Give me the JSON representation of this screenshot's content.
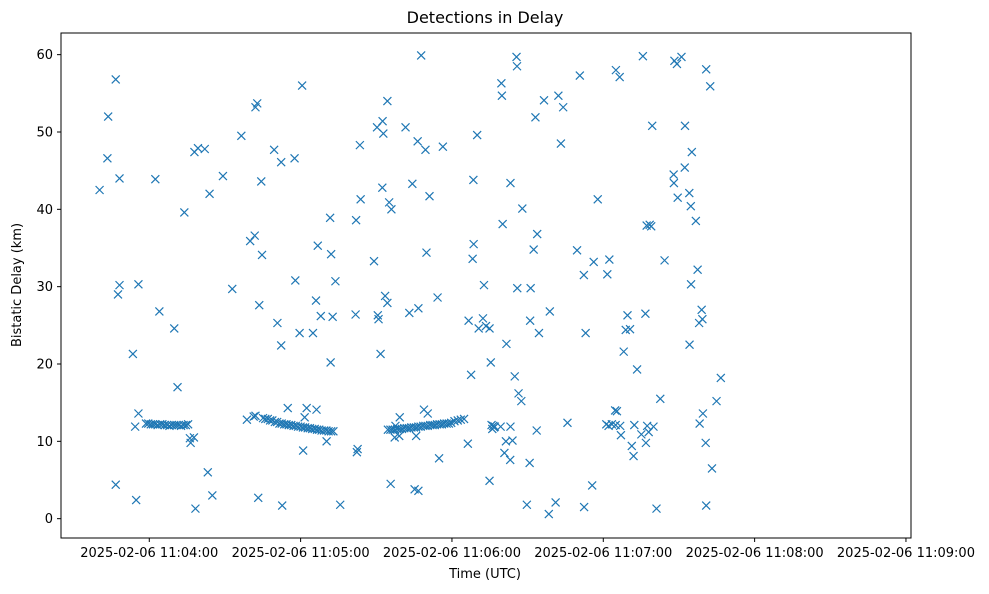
{
  "chart_data": {
    "type": "scatter",
    "title": "Detections in Delay",
    "xlabel": "Time (UTC)",
    "ylabel": "Bistatic Delay (km)",
    "marker": "x",
    "color": "#1f77b4",
    "x_unit": "seconds after 2025-02-06 11:03:00",
    "xlim": [
      25,
      362
    ],
    "ylim": [
      -2.5,
      62.8
    ],
    "xticks": [
      60,
      120,
      180,
      240,
      300,
      360
    ],
    "xtick_labels": [
      "2025-02-06 11:04:00",
      "2025-02-06 11:05:00",
      "2025-02-06 11:06:00",
      "2025-02-06 11:07:00",
      "2025-02-06 11:08:00",
      "2025-02-06 11:09:00"
    ],
    "yticks": [
      0,
      10,
      20,
      30,
      40,
      50,
      60
    ],
    "ytick_labels": [
      "0",
      "10",
      "20",
      "30",
      "40",
      "50",
      "60"
    ],
    "points": [
      [
        40.3,
        42.5
      ],
      [
        43.4,
        46.6
      ],
      [
        43.7,
        52.0
      ],
      [
        46.7,
        56.8
      ],
      [
        46.7,
        4.4
      ],
      [
        47.6,
        29.0
      ],
      [
        48.2,
        30.2
      ],
      [
        48.2,
        44.0
      ],
      [
        53.5,
        21.3
      ],
      [
        54.4,
        11.9
      ],
      [
        54.8,
        2.4
      ],
      [
        55.7,
        13.6
      ],
      [
        55.7,
        30.3
      ],
      [
        58.7,
        12.3
      ],
      [
        59.6,
        12.3
      ],
      [
        60.6,
        12.2
      ],
      [
        61.5,
        12.2
      ],
      [
        62.4,
        12.2
      ],
      [
        63.3,
        12.1
      ],
      [
        64.3,
        12.2
      ],
      [
        65.2,
        12.2
      ],
      [
        66.1,
        12.1
      ],
      [
        67.1,
        12.1
      ],
      [
        68.0,
        12.0
      ],
      [
        68.9,
        12.1
      ],
      [
        69.9,
        12.1
      ],
      [
        70.8,
        12.1
      ],
      [
        71.7,
        12.1
      ],
      [
        72.6,
        12.0
      ],
      [
        73.6,
        12.1
      ],
      [
        74.5,
        12.1
      ],
      [
        75.4,
        12.2
      ],
      [
        62.4,
        43.9
      ],
      [
        64.0,
        26.8
      ],
      [
        69.9,
        24.6
      ],
      [
        71.2,
        17.0
      ],
      [
        73.9,
        39.6
      ],
      [
        76.1,
        10.4
      ],
      [
        76.4,
        9.8
      ],
      [
        77.7,
        10.5
      ],
      [
        78.3,
        1.3
      ],
      [
        77.9,
        47.4
      ],
      [
        79.3,
        47.9
      ],
      [
        82.0,
        47.8
      ],
      [
        83.2,
        6.0
      ],
      [
        83.9,
        42.0
      ],
      [
        85.0,
        3.0
      ],
      [
        89.2,
        44.3
      ],
      [
        92.9,
        29.7
      ],
      [
        96.5,
        49.5
      ],
      [
        98.7,
        12.8
      ],
      [
        100.0,
        35.9
      ],
      [
        101.4,
        13.2
      ],
      [
        101.8,
        36.6
      ],
      [
        102.1,
        13.3
      ],
      [
        102.1,
        53.2
      ],
      [
        102.8,
        53.7
      ],
      [
        103.2,
        2.7
      ],
      [
        103.6,
        27.6
      ],
      [
        104.4,
        43.6
      ],
      [
        104.7,
        34.1
      ],
      [
        105.1,
        13.0
      ],
      [
        106.0,
        12.9
      ],
      [
        107.0,
        12.9
      ],
      [
        107.9,
        12.7
      ],
      [
        108.8,
        12.7
      ],
      [
        109.8,
        12.5
      ],
      [
        110.7,
        12.5
      ],
      [
        111.6,
        12.3
      ],
      [
        112.5,
        12.3
      ],
      [
        113.5,
        12.2
      ],
      [
        114.4,
        12.2
      ],
      [
        115.3,
        12.1
      ],
      [
        116.3,
        12.1
      ],
      [
        117.2,
        12.0
      ],
      [
        118.1,
        12.0
      ],
      [
        119.0,
        11.9
      ],
      [
        120.0,
        11.9
      ],
      [
        120.9,
        11.8
      ],
      [
        121.8,
        11.8
      ],
      [
        122.8,
        11.7
      ],
      [
        123.7,
        11.7
      ],
      [
        124.6,
        11.6
      ],
      [
        125.6,
        11.6
      ],
      [
        126.5,
        11.5
      ],
      [
        127.4,
        11.5
      ],
      [
        128.3,
        11.4
      ],
      [
        129.3,
        11.4
      ],
      [
        130.2,
        11.4
      ],
      [
        131.1,
        11.3
      ],
      [
        132.1,
        11.3
      ],
      [
        133.0,
        11.3
      ],
      [
        109.5,
        47.7
      ],
      [
        110.8,
        25.3
      ],
      [
        112.3,
        46.1
      ],
      [
        112.3,
        22.4
      ],
      [
        112.7,
        1.7
      ],
      [
        114.9,
        14.3
      ],
      [
        117.6,
        46.6
      ],
      [
        117.9,
        30.8
      ],
      [
        119.6,
        24.0
      ],
      [
        120.6,
        56.0
      ],
      [
        121.0,
        8.8
      ],
      [
        121.6,
        13.1
      ],
      [
        122.4,
        14.3
      ],
      [
        124.9,
        24.0
      ],
      [
        126.1,
        28.2
      ],
      [
        126.3,
        14.1
      ],
      [
        126.8,
        35.3
      ],
      [
        128.0,
        26.2
      ],
      [
        130.3,
        10.0
      ],
      [
        131.7,
        38.9
      ],
      [
        131.9,
        20.2
      ],
      [
        132.1,
        34.2
      ],
      [
        132.7,
        26.1
      ],
      [
        133.8,
        30.7
      ],
      [
        135.7,
        1.8
      ],
      [
        141.8,
        26.4
      ],
      [
        142.0,
        38.6
      ],
      [
        142.3,
        8.6
      ],
      [
        142.6,
        9.0
      ],
      [
        143.5,
        48.3
      ],
      [
        143.8,
        41.3
      ],
      [
        149.1,
        33.3
      ],
      [
        150.3,
        50.6
      ],
      [
        150.6,
        26.3
      ],
      [
        150.9,
        25.8
      ],
      [
        151.7,
        21.3
      ],
      [
        152.5,
        51.4
      ],
      [
        152.4,
        42.8
      ],
      [
        152.8,
        49.8
      ],
      [
        153.5,
        28.8
      ],
      [
        154.4,
        54.0
      ],
      [
        154.4,
        27.9
      ],
      [
        155.1,
        40.9
      ],
      [
        155.7,
        4.5
      ],
      [
        156.0,
        40.0
      ],
      [
        154.6,
        11.5
      ],
      [
        155.6,
        11.5
      ],
      [
        156.5,
        11.5
      ],
      [
        157.4,
        11.5
      ],
      [
        158.3,
        11.6
      ],
      [
        159.3,
        11.6
      ],
      [
        160.2,
        11.6
      ],
      [
        161.1,
        11.7
      ],
      [
        162.1,
        11.7
      ],
      [
        163.0,
        11.7
      ],
      [
        163.9,
        11.8
      ],
      [
        164.9,
        11.8
      ],
      [
        165.8,
        11.8
      ],
      [
        166.7,
        11.9
      ],
      [
        167.6,
        11.9
      ],
      [
        168.6,
        12.0
      ],
      [
        169.5,
        12.0
      ],
      [
        170.4,
        12.0
      ],
      [
        171.4,
        12.1
      ],
      [
        172.3,
        12.1
      ],
      [
        173.2,
        12.1
      ],
      [
        174.1,
        12.2
      ],
      [
        175.1,
        12.2
      ],
      [
        176.0,
        12.2
      ],
      [
        176.9,
        12.3
      ],
      [
        177.9,
        12.3
      ],
      [
        178.8,
        12.3
      ],
      [
        179.7,
        12.4
      ],
      [
        157.3,
        10.5
      ],
      [
        157.6,
        12.0
      ],
      [
        159.1,
        10.7
      ],
      [
        159.3,
        13.1
      ],
      [
        161.6,
        50.6
      ],
      [
        163.1,
        26.6
      ],
      [
        164.3,
        43.3
      ],
      [
        165.2,
        3.8
      ],
      [
        165.8,
        10.7
      ],
      [
        166.4,
        48.8
      ],
      [
        166.7,
        3.6
      ],
      [
        166.7,
        27.2
      ],
      [
        167.8,
        59.9
      ],
      [
        168.9,
        14.1
      ],
      [
        169.5,
        47.7
      ],
      [
        169.9,
        34.4
      ],
      [
        170.4,
        13.6
      ],
      [
        171.1,
        41.7
      ],
      [
        174.3,
        28.6
      ],
      [
        174.9,
        7.8
      ],
      [
        176.4,
        48.1
      ],
      [
        181.0,
        12.6
      ],
      [
        182.3,
        12.7
      ],
      [
        183.5,
        12.8
      ],
      [
        184.8,
        12.9
      ],
      [
        186.3,
        9.7
      ],
      [
        186.6,
        25.6
      ],
      [
        187.6,
        18.6
      ],
      [
        188.2,
        33.6
      ],
      [
        188.5,
        43.8
      ],
      [
        188.6,
        35.5
      ],
      [
        190.0,
        49.6
      ],
      [
        190.6,
        24.6
      ],
      [
        192.3,
        25.9
      ],
      [
        192.7,
        30.2
      ],
      [
        193.5,
        24.9
      ],
      [
        194.9,
        4.9
      ],
      [
        194.9,
        24.6
      ],
      [
        195.4,
        20.2
      ],
      [
        195.7,
        12.1
      ],
      [
        196.0,
        11.6
      ],
      [
        196.4,
        12.0
      ],
      [
        196.7,
        11.8
      ],
      [
        197.0,
        11.9
      ],
      [
        199.3,
        11.9
      ],
      [
        199.6,
        56.3
      ],
      [
        199.8,
        54.7
      ],
      [
        200.1,
        38.1
      ],
      [
        200.8,
        8.5
      ],
      [
        201.4,
        10.0
      ],
      [
        201.6,
        22.6
      ],
      [
        203.1,
        7.6
      ],
      [
        203.2,
        11.9
      ],
      [
        203.2,
        43.4
      ],
      [
        204.0,
        10.1
      ],
      [
        204.9,
        18.4
      ],
      [
        205.6,
        59.7
      ],
      [
        205.8,
        58.5
      ],
      [
        205.9,
        29.8
      ],
      [
        206.4,
        16.2
      ],
      [
        207.5,
        15.2
      ],
      [
        207.9,
        40.1
      ],
      [
        209.7,
        1.8
      ],
      [
        210.8,
        7.2
      ],
      [
        211.0,
        25.6
      ],
      [
        211.2,
        29.8
      ],
      [
        212.4,
        34.8
      ],
      [
        213.1,
        51.9
      ],
      [
        213.6,
        11.4
      ],
      [
        213.8,
        36.8
      ],
      [
        214.5,
        24.0
      ],
      [
        216.5,
        54.1
      ],
      [
        218.4,
        0.6
      ],
      [
        218.8,
        26.8
      ],
      [
        221.1,
        2.1
      ],
      [
        222.2,
        54.7
      ],
      [
        223.2,
        48.5
      ],
      [
        224.1,
        53.2
      ],
      [
        225.8,
        12.4
      ],
      [
        229.6,
        34.7
      ],
      [
        230.7,
        57.3
      ],
      [
        232.3,
        31.5
      ],
      [
        232.4,
        1.5
      ],
      [
        233.0,
        24.0
      ],
      [
        235.6,
        4.3
      ],
      [
        236.2,
        33.2
      ],
      [
        237.8,
        41.3
      ],
      [
        241.2,
        12.2
      ],
      [
        241.6,
        31.6
      ],
      [
        242.1,
        12.0
      ],
      [
        242.4,
        33.5
      ],
      [
        243.4,
        12.2
      ],
      [
        244.7,
        14.0
      ],
      [
        244.9,
        12.1
      ],
      [
        245.0,
        58.0
      ],
      [
        245.4,
        13.9
      ],
      [
        246.5,
        57.1
      ],
      [
        246.7,
        12.0
      ],
      [
        247.0,
        10.8
      ],
      [
        248.1,
        21.6
      ],
      [
        248.9,
        24.4
      ],
      [
        249.6,
        26.3
      ],
      [
        250.6,
        24.5
      ],
      [
        251.3,
        9.4
      ],
      [
        252.0,
        8.1
      ],
      [
        252.3,
        12.1
      ],
      [
        253.4,
        19.3
      ],
      [
        255.1,
        10.9
      ],
      [
        255.7,
        59.8
      ],
      [
        256.7,
        26.5
      ],
      [
        256.9,
        9.8
      ],
      [
        257.2,
        37.9
      ],
      [
        257.4,
        12.0
      ],
      [
        258.0,
        11.2
      ],
      [
        258.4,
        38.0
      ],
      [
        259.0,
        37.8
      ],
      [
        259.4,
        50.8
      ],
      [
        259.9,
        11.9
      ],
      [
        261.1,
        1.3
      ],
      [
        262.6,
        15.5
      ],
      [
        264.3,
        33.4
      ],
      [
        267.9,
        44.5
      ],
      [
        268.0,
        43.4
      ],
      [
        268.2,
        59.2
      ],
      [
        269.5,
        41.5
      ],
      [
        269.2,
        58.8
      ],
      [
        271.0,
        59.7
      ],
      [
        272.3,
        45.4
      ],
      [
        272.4,
        50.8
      ],
      [
        274.1,
        42.1
      ],
      [
        274.2,
        22.5
      ],
      [
        274.7,
        40.4
      ],
      [
        274.8,
        30.3
      ],
      [
        275.1,
        47.4
      ],
      [
        276.7,
        38.5
      ],
      [
        277.4,
        32.2
      ],
      [
        278.0,
        25.3
      ],
      [
        278.2,
        12.3
      ],
      [
        279.0,
        27.0
      ],
      [
        279.3,
        25.8
      ],
      [
        279.5,
        13.6
      ],
      [
        280.6,
        9.8
      ],
      [
        280.8,
        1.7
      ],
      [
        280.8,
        58.1
      ],
      [
        282.4,
        55.9
      ],
      [
        283.1,
        6.5
      ],
      [
        284.9,
        15.2
      ],
      [
        286.6,
        18.2
      ]
    ]
  }
}
